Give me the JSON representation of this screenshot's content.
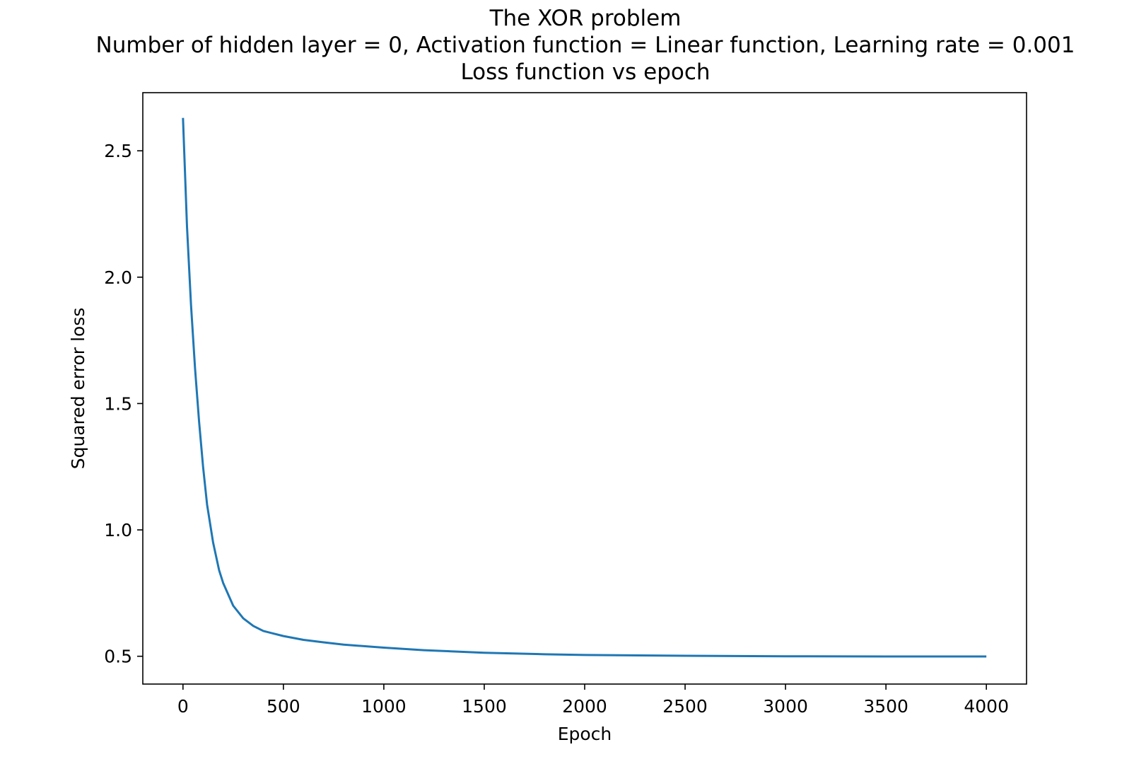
{
  "chart_data": {
    "type": "line",
    "title_lines": [
      "The XOR problem",
      "Number of hidden layer = 0, Activation function = Linear function, Learning rate = 0.001",
      "Loss function vs epoch"
    ],
    "xlabel": "Epoch",
    "ylabel": "Squared error loss",
    "xlim": [
      -200,
      4200
    ],
    "ylim": [
      0.39,
      2.73
    ],
    "x_ticks": [
      0,
      500,
      1000,
      1500,
      2000,
      2500,
      3000,
      3500,
      4000
    ],
    "x_tick_labels": [
      "0",
      "500",
      "1000",
      "1500",
      "2000",
      "2500",
      "3000",
      "3500",
      "4000"
    ],
    "y_ticks": [
      0.5,
      1.0,
      1.5,
      2.0,
      2.5
    ],
    "y_tick_labels": [
      "0.5",
      "1.0",
      "1.5",
      "2.0",
      "2.5"
    ],
    "grid": false,
    "series": [
      {
        "color": "#1f77b4",
        "x": [
          0,
          20,
          40,
          60,
          80,
          100,
          120,
          150,
          180,
          200,
          250,
          300,
          350,
          400,
          500,
          600,
          700,
          800,
          1000,
          1200,
          1500,
          1800,
          2000,
          2500,
          3000,
          3500,
          4000
        ],
        "y": [
          2.63,
          2.2,
          1.89,
          1.64,
          1.43,
          1.25,
          1.1,
          0.95,
          0.84,
          0.79,
          0.7,
          0.65,
          0.62,
          0.6,
          0.58,
          0.565,
          0.555,
          0.546,
          0.534,
          0.524,
          0.514,
          0.508,
          0.505,
          0.502,
          0.5,
          0.499,
          0.499
        ]
      }
    ]
  }
}
